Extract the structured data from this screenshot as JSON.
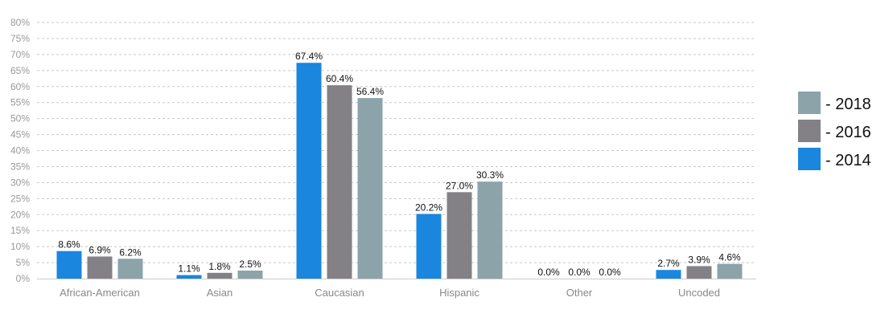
{
  "chart_data": {
    "type": "bar",
    "categories": [
      "African-American",
      "Asian",
      "Caucasian",
      "Hispanic",
      "Other",
      "Uncoded"
    ],
    "series": [
      {
        "name": "- 2014",
        "color": "#1a86de",
        "values": [
          8.6,
          1.1,
          67.4,
          20.2,
          0.0,
          2.7
        ],
        "labels": [
          "8.6%",
          "1.1%",
          "67.4%",
          "20.2%",
          "0.0%",
          "2.7%"
        ]
      },
      {
        "name": "- 2016",
        "color": "#838186",
        "values": [
          6.9,
          1.8,
          60.4,
          27.0,
          0.0,
          3.9
        ],
        "labels": [
          "6.9%",
          "1.8%",
          "60.4%",
          "27.0%",
          "0.0%",
          "3.9%"
        ]
      },
      {
        "name": "- 2018",
        "color": "#8ca3aa",
        "values": [
          6.2,
          2.5,
          56.4,
          30.3,
          0.0,
          4.6
        ],
        "labels": [
          "6.2%",
          "2.5%",
          "56.4%",
          "30.3%",
          "0.0%",
          "4.6%"
        ]
      }
    ],
    "yticks": [
      "0%",
      "5%",
      "10%",
      "15%",
      "20%",
      "25%",
      "30%",
      "35%",
      "40%",
      "45%",
      "50%",
      "55%",
      "60%",
      "65%",
      "70%",
      "75%",
      "80%"
    ],
    "ylim": [
      0,
      80
    ],
    "ytick_step": 5,
    "grid": true,
    "legend_position": "right",
    "legend_order": [
      "- 2018",
      "- 2016",
      "- 2014"
    ],
    "title": "",
    "xlabel": "",
    "ylabel": ""
  }
}
